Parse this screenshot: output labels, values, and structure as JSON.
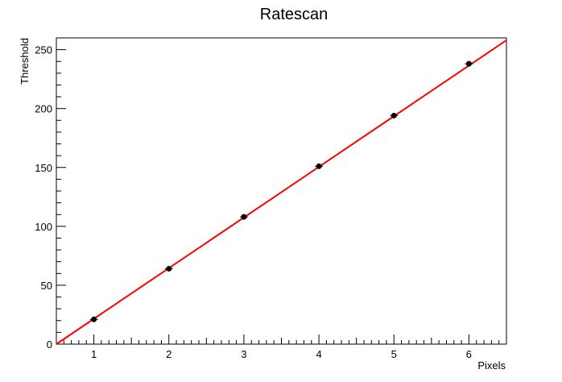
{
  "chart_data": {
    "type": "scatter",
    "title": "Ratescan",
    "xlabel": "Pixels",
    "ylabel": "Threshold",
    "xlim": [
      0.5,
      6.5
    ],
    "ylim": [
      0,
      260
    ],
    "x_ticks": [
      "1",
      "2",
      "3",
      "4",
      "5",
      "6"
    ],
    "y_ticks": [
      "0",
      "50",
      "100",
      "150",
      "200",
      "250"
    ],
    "grid": false,
    "legend": "none",
    "series": [
      {
        "x": [
          1,
          2,
          3,
          4,
          5,
          6
        ],
        "y": [
          21,
          64,
          108,
          151,
          194,
          238
        ],
        "color": "#000000"
      }
    ],
    "fit_line": {
      "x": [
        0.5,
        6.5
      ],
      "y": [
        0,
        258
      ],
      "color": "#ff0000"
    }
  }
}
